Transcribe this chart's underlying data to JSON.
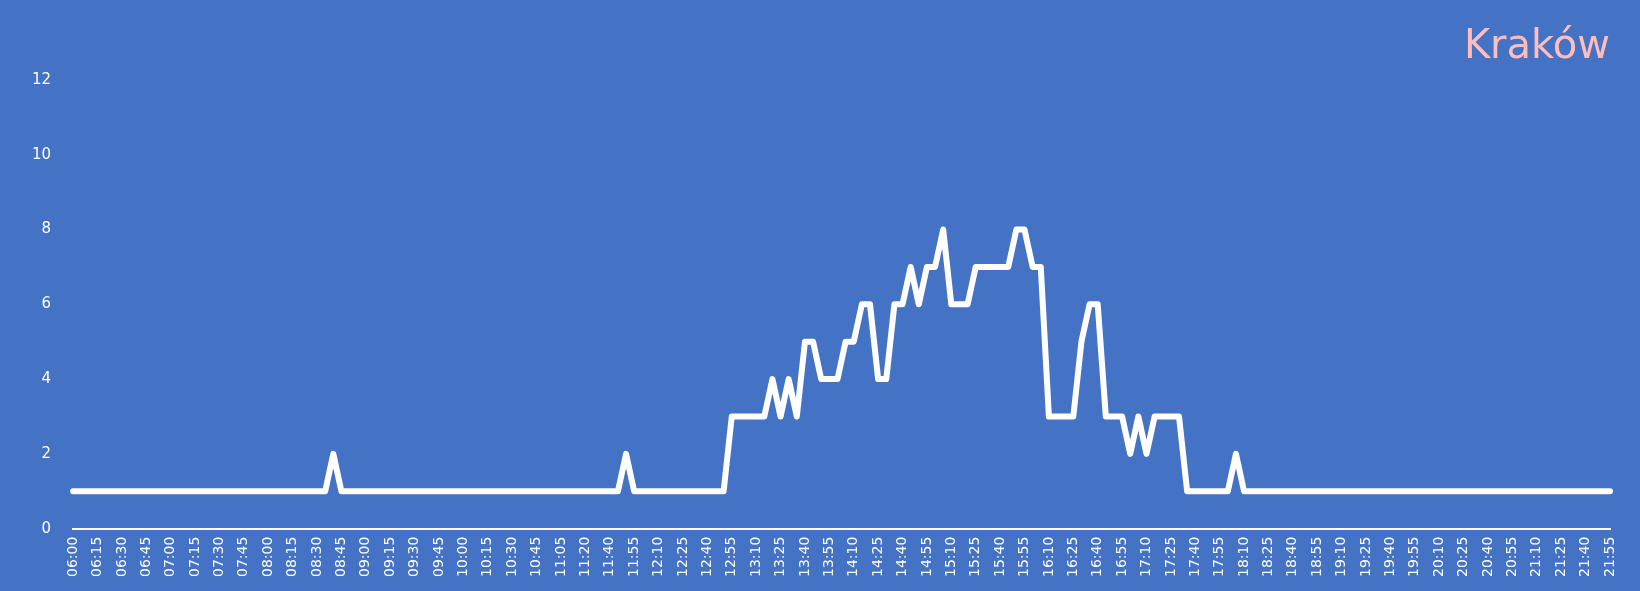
{
  "chart_data": {
    "type": "line",
    "title": "Kraków",
    "categories": [
      "06:00",
      null,
      null,
      "06:15",
      null,
      null,
      "06:30",
      null,
      null,
      "06:45",
      null,
      null,
      "07:00",
      null,
      null,
      "07:15",
      null,
      null,
      "07:30",
      null,
      null,
      "07:45",
      null,
      null,
      "08:00",
      null,
      null,
      "08:15",
      null,
      null,
      "08:30",
      null,
      null,
      "08:45",
      null,
      null,
      "09:00",
      null,
      null,
      "09:15",
      null,
      null,
      "09:30",
      null,
      null,
      "09:45",
      null,
      null,
      "10:00",
      null,
      null,
      "10:15",
      null,
      null,
      "10:30",
      null,
      null,
      "10:45",
      null,
      null,
      "11:05",
      null,
      null,
      "11:20",
      null,
      null,
      "11:40",
      null,
      null,
      "11:55",
      null,
      null,
      "12:10",
      null,
      null,
      "12:25",
      null,
      null,
      "12:40",
      null,
      null,
      "12:55",
      null,
      null,
      "13:10",
      null,
      null,
      "13:25",
      null,
      null,
      "13:40",
      null,
      null,
      "13:55",
      null,
      null,
      "14:10",
      null,
      null,
      "14:25",
      null,
      null,
      "14:40",
      null,
      null,
      "14:55",
      null,
      null,
      "15:10",
      null,
      null,
      "15:25",
      null,
      null,
      "15:40",
      null,
      null,
      "15:55",
      null,
      null,
      "16:10",
      null,
      null,
      "16:25",
      null,
      null,
      "16:40",
      null,
      null,
      "16:55",
      null,
      null,
      "17:10",
      null,
      null,
      "17:25",
      null,
      null,
      "17:40",
      null,
      null,
      "17:55",
      null,
      null,
      "18:10",
      null,
      null,
      "18:25",
      null,
      null,
      "18:40",
      null,
      null,
      "18:55",
      null,
      null,
      "19:10",
      null,
      null,
      "19:25",
      null,
      null,
      "19:40",
      null,
      null,
      "19:55",
      null,
      null,
      "20:10",
      null,
      null,
      "20:25",
      null,
      null,
      "20:40",
      null,
      null,
      "20:55",
      null,
      null,
      "21:10",
      null,
      null,
      "21:25",
      null,
      null,
      "21:40",
      null,
      null,
      "21:55"
    ],
    "series": [
      {
        "color": "#ffffff",
        "values": [
          1,
          1,
          1,
          1,
          1,
          1,
          1,
          1,
          1,
          1,
          1,
          1,
          1,
          1,
          1,
          1,
          1,
          1,
          1,
          1,
          1,
          1,
          1,
          1,
          1,
          1,
          1,
          1,
          1,
          1,
          1,
          1,
          2,
          1,
          1,
          1,
          1,
          1,
          1,
          1,
          1,
          1,
          1,
          1,
          1,
          1,
          1,
          1,
          1,
          1,
          1,
          1,
          1,
          1,
          1,
          1,
          1,
          1,
          1,
          1,
          1,
          1,
          1,
          1,
          1,
          1,
          1,
          1,
          2,
          1,
          1,
          1,
          1,
          1,
          1,
          1,
          1,
          1,
          1,
          1,
          1,
          3,
          3,
          3,
          3,
          3,
          4,
          3,
          4,
          3,
          5,
          5,
          4,
          4,
          4,
          5,
          5,
          6,
          6,
          4,
          4,
          6,
          6,
          7,
          6,
          7,
          7,
          8,
          6,
          6,
          6,
          7,
          7,
          7,
          7,
          7,
          8,
          8,
          7,
          7,
          3,
          3,
          3,
          3,
          5,
          6,
          6,
          3,
          3,
          3,
          2,
          3,
          2,
          3,
          3,
          3,
          3,
          1,
          1,
          1,
          1,
          1,
          1,
          2,
          1,
          1,
          1,
          1,
          1,
          1,
          1,
          1,
          1,
          1,
          1,
          1,
          1,
          1,
          1,
          1,
          1,
          1,
          1,
          1,
          1,
          1,
          1,
          1,
          1,
          1,
          1,
          1,
          1,
          1,
          1,
          1,
          1,
          1,
          1,
          1,
          1,
          1,
          1,
          1,
          1,
          1,
          1,
          1,
          1,
          1
        ]
      }
    ],
    "ylim": [
      0,
      12
    ],
    "yticks": [
      0,
      2,
      4,
      6,
      8,
      10,
      12
    ],
    "marker": "none",
    "line_style": "solid",
    "legend": false,
    "grid": false
  }
}
